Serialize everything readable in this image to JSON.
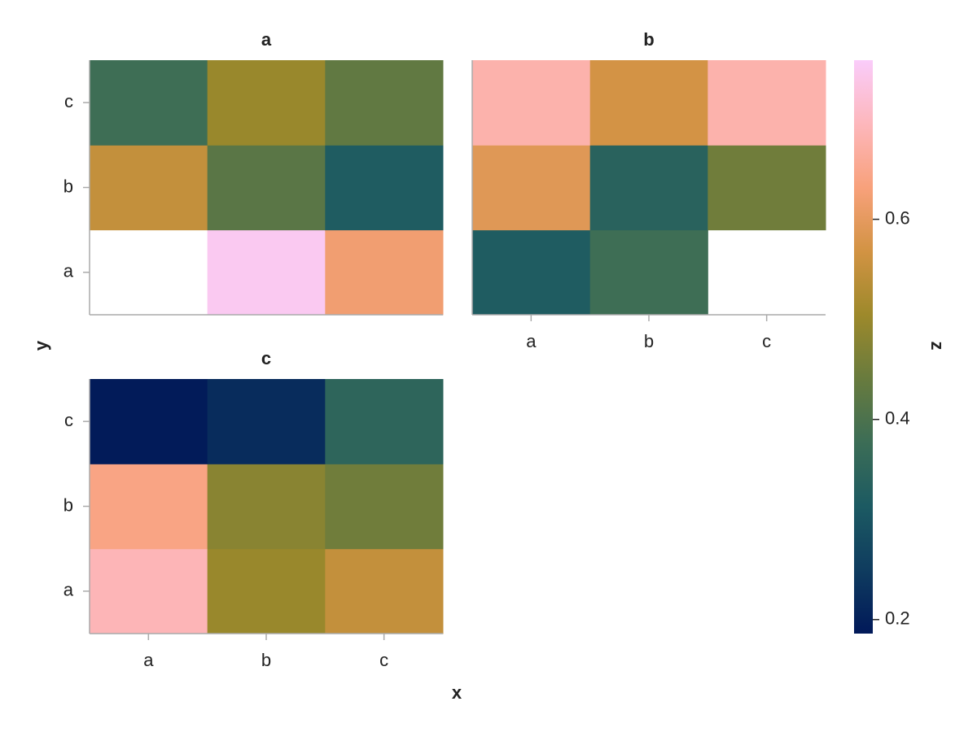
{
  "chart_data": {
    "type": "heatmap",
    "x_label": "x",
    "y_label": "y",
    "categories": [
      "a",
      "b",
      "c"
    ],
    "y_categories": [
      "a",
      "b",
      "c"
    ],
    "facets": [
      {
        "title": "a",
        "values": [
          [
            null,
            0.75,
            0.62
          ],
          [
            0.55,
            0.42,
            0.32
          ],
          [
            0.38,
            0.5,
            0.43
          ]
        ]
      },
      {
        "title": "b",
        "values": [
          [
            0.32,
            0.38,
            null
          ],
          [
            0.59,
            0.34,
            0.45
          ],
          [
            0.68,
            0.57,
            0.68
          ]
        ]
      },
      {
        "title": "c",
        "values": [
          [
            0.69,
            0.5,
            0.55
          ],
          [
            0.64,
            0.48,
            0.45
          ],
          [
            0.19,
            0.22,
            0.35
          ]
        ]
      }
    ],
    "colorbar": {
      "label": "z",
      "lim": [
        0.186,
        0.759
      ],
      "ticks": [
        0.2,
        0.4,
        0.6
      ],
      "colormap": [
        "#011959",
        "#0F3C5F",
        "#1C5A62",
        "#3C6D56",
        "#687B3E",
        "#9D892B",
        "#D29343",
        "#F8A17B",
        "#FDB7BC",
        "#FACCFA"
      ]
    }
  }
}
